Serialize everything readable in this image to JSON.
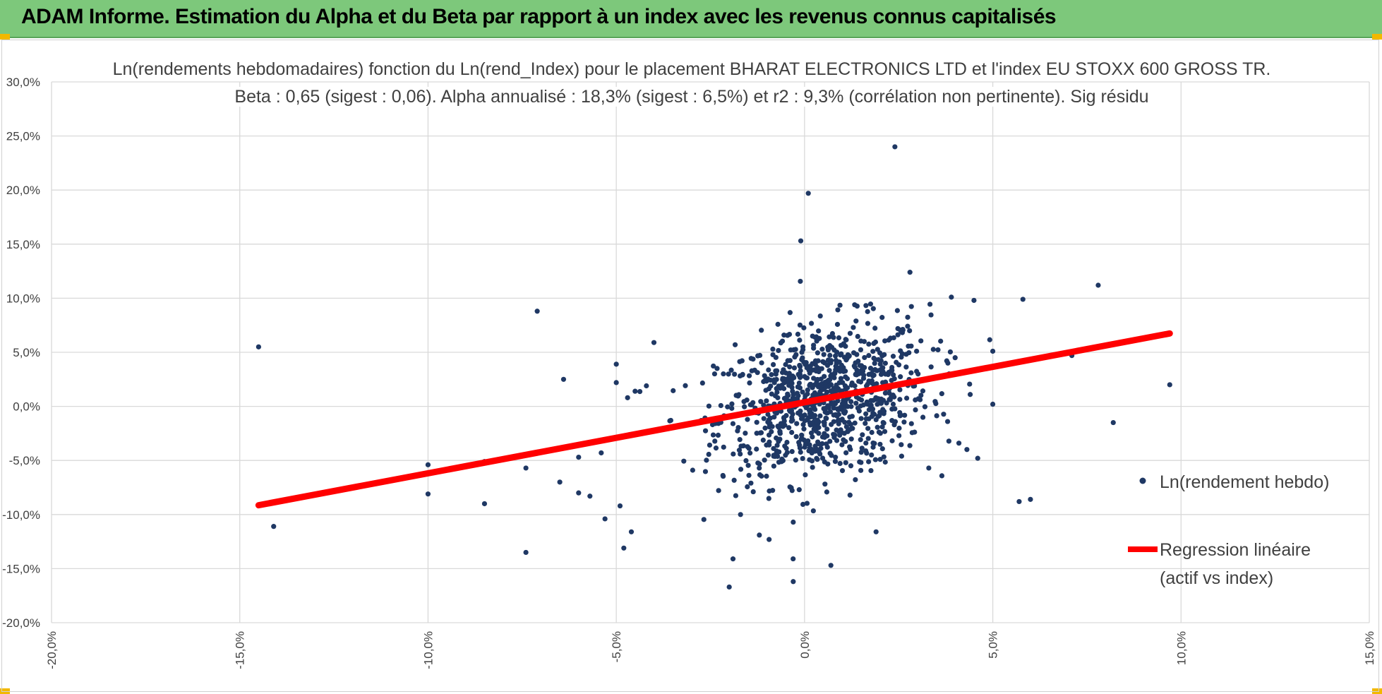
{
  "header": {
    "title": "ADAM Informe. Estimation du Alpha et du Beta par rapport à un index avec les revenus connus capitalisés"
  },
  "colors": {
    "header_bg": "#7dc87b",
    "points": "#1f3864",
    "regression": "#ff0000",
    "grid": "#d9d9d9",
    "accent_corner": "#f2b800"
  },
  "chart_data": {
    "type": "scatter",
    "title_line1": "Ln(rendements hebdomadaires) fonction du Ln(rend_Index) pour le placement BHARAT ELECTRONICS LTD et l'index EU STOXX 600 GROSS TR.",
    "title_line2": "Beta : 0,65 (sigest : 0,06). Alpha annualisé : 18,3% (sigest : 6,5%) et r2 : 9,3% (corrélation non pertinente). Sig résidu",
    "xlim": [
      -0.2,
      0.15
    ],
    "ylim": [
      -0.2,
      0.3
    ],
    "x_ticks": [
      "-20,0%",
      "-15,0%",
      "-10,0%",
      "-5,0%",
      "0,0%",
      "5,0%",
      "10,0%",
      "15,0%"
    ],
    "y_ticks": [
      "30,0%",
      "25,0%",
      "20,0%",
      "15,0%",
      "10,0%",
      "5,0%",
      "0,0%",
      "-5,0%",
      "-10,0%",
      "-15,0%",
      "-20,0%"
    ],
    "grid": true,
    "legend_position": "right",
    "series": [
      {
        "name": "Ln(rendement hebdo)",
        "kind": "points",
        "cloud": {
          "n": 950,
          "center_x": 0.005,
          "center_y": 0.005,
          "sd_x": 0.014,
          "sd_y": 0.035,
          "slope": 0.65
        },
        "outliers": [
          [
            -0.145,
            0.055
          ],
          [
            -0.141,
            -0.111
          ],
          [
            -0.1,
            -0.054
          ],
          [
            -0.1,
            -0.081
          ],
          [
            -0.085,
            -0.051
          ],
          [
            -0.085,
            -0.09
          ],
          [
            -0.075,
            -0.046
          ],
          [
            -0.074,
            -0.057
          ],
          [
            -0.074,
            -0.135
          ],
          [
            -0.071,
            0.088
          ],
          [
            -0.064,
            0.025
          ],
          [
            -0.065,
            -0.07
          ],
          [
            -0.06,
            -0.047
          ],
          [
            -0.06,
            -0.08
          ],
          [
            -0.057,
            -0.083
          ],
          [
            -0.054,
            -0.043
          ],
          [
            -0.053,
            -0.104
          ],
          [
            -0.05,
            0.039
          ],
          [
            -0.05,
            0.022
          ],
          [
            -0.047,
            0.008
          ],
          [
            -0.049,
            -0.092
          ],
          [
            -0.048,
            -0.131
          ],
          [
            -0.046,
            -0.116
          ],
          [
            -0.045,
            0.014
          ],
          [
            -0.042,
            0.019
          ],
          [
            -0.04,
            0.059
          ],
          [
            -0.02,
            -0.167
          ],
          [
            -0.019,
            -0.141
          ],
          [
            -0.017,
            -0.1
          ],
          [
            -0.012,
            -0.119
          ],
          [
            -0.003,
            -0.162
          ],
          [
            0.001,
            0.197
          ],
          [
            -0.001,
            0.153
          ],
          [
            0.007,
            -0.147
          ],
          [
            -0.003,
            -0.107
          ],
          [
            0.024,
            0.24
          ],
          [
            0.019,
            -0.116
          ],
          [
            0.028,
            0.124
          ],
          [
            0.039,
            0.101
          ],
          [
            0.045,
            0.098
          ],
          [
            0.05,
            0.051
          ],
          [
            0.05,
            0.002
          ],
          [
            0.058,
            0.099
          ],
          [
            0.057,
            -0.088
          ],
          [
            0.06,
            -0.086
          ],
          [
            0.071,
            0.047
          ],
          [
            0.078,
            0.112
          ],
          [
            0.082,
            -0.015
          ],
          [
            0.097,
            0.02
          ],
          [
            0.046,
            -0.048
          ],
          [
            0.041,
            -0.034
          ],
          [
            0.033,
            -0.057
          ],
          [
            0.04,
            0.045
          ],
          [
            0.044,
            0.011
          ],
          [
            0.036,
            0.027
          ],
          [
            0.038,
            -0.014
          ]
        ]
      },
      {
        "name": "Regression linéaire (actif vs index)",
        "kind": "line",
        "x": [
          -0.145,
          0.097
        ],
        "y": [
          -0.0914,
          0.0674
        ]
      }
    ],
    "legend": {
      "scatter_label": "Ln(rendement hebdo)",
      "line_label_1": "Regression linéaire",
      "line_label_2": "(actif vs index)"
    }
  }
}
